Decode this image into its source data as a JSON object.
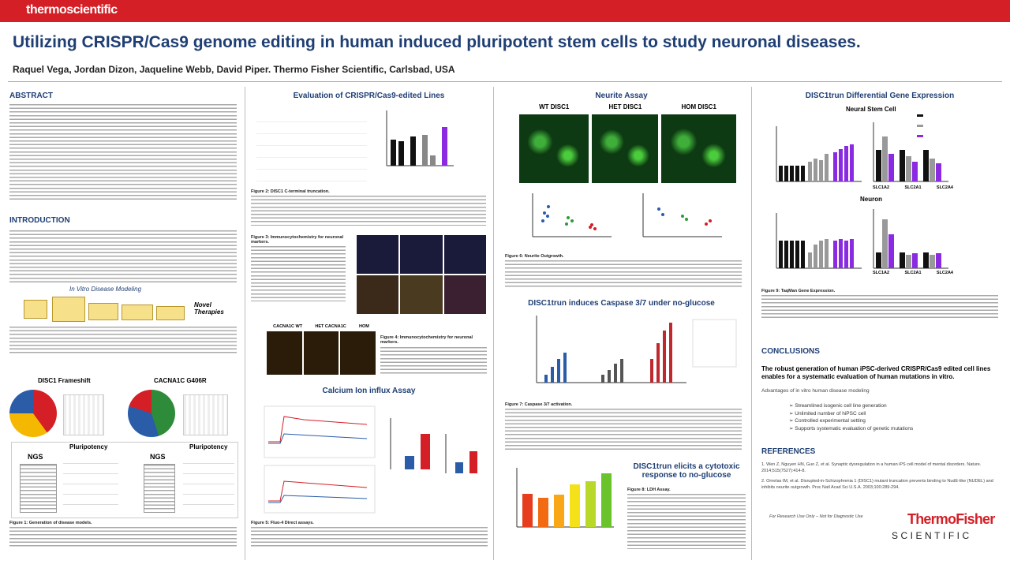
{
  "header": {
    "logo": "thermoscientific",
    "title": "Utilizing CRISPR/Cas9 genome editing in human induced pluripotent stem cells to study neuronal diseases.",
    "authors": "Raquel Vega, Jordan Dizon, Jaqueline Webb, David Piper. Thermo Fisher Scientific, Carlsbad, USA"
  },
  "column1": {
    "abstract": "ABSTRACT",
    "introduction": "INTRODUCTION",
    "modeling": "In Vitro Disease Modeling",
    "therapies": "Novel Therapies",
    "frameshift": "DISC1 Frameshift",
    "cacna": "CACNA1C G406R",
    "ngs": "NGS",
    "pluripotency": "Pluripotency",
    "caption": "Figure 1: Generation of disease models."
  },
  "column2": {
    "evaluation": "Evaluation of CRISPR/Cas9-edited Lines",
    "caption2": "Figure 2: DISC1 C-terminal truncation.",
    "caption3": "Figure 3: Immunocytochemistry for neuronal markers.",
    "caption4": "Figure 4: Immunocytochemistry for neuronal markers.",
    "labels": [
      "CACNA1C WT",
      "HET CACNA1C",
      "HOM"
    ],
    "calcium": "Calcium Ion influx Assay",
    "caption5": "Figure 5: Fluo-4 Direct assays."
  },
  "column3": {
    "neurite": "Neurite Assay",
    "labels": [
      "WT DISC1",
      "HET DISC1",
      "HOM DISC1"
    ],
    "caption6": "Figure 6: Neurite Outgrowth.",
    "caspase": "DISC1trun induces Caspase 3/7 under no-glucose",
    "caption7": "Figure 7: Caspase 3/7 activation.",
    "cytotoxic": [
      "DISC1trun elicits a cytotoxic",
      "response to no-glucose"
    ],
    "caption8": "Figure 8: LDH Assay."
  },
  "column4": {
    "expression": "DISC1trun Differential Gene Expression",
    "nsc": "Neural Stem Cell",
    "neuron": "Neuron",
    "genes": [
      "SLC1A2",
      "SLC2A1",
      "SLC2A4"
    ],
    "caption9": "Figure 9: TaqMan Gene Expression.",
    "conclusions": "CONCLUSIONS",
    "statement": "The robust generation of human iPSC-derived CRISPR/Cas9 edited cell lines enables for a systematic evaluation of human mutations in vitro.",
    "advantages": "Advantages of in vitro human disease modeling",
    "bullets": [
      "Streamlined isogenic cell line generation",
      "Unlimited number of hiPSC cell",
      "Controlled experimental setting",
      "Supports systematic evaluation of genetic mutations"
    ],
    "references": "REFERENCES",
    "refs": [
      "1. Wen Z, Nguyen HN, Guo Z, et al. Synaptic dysregulation in a human iPS cell model of mental disorders. Nature. 2014;515(7527):414-8.",
      "2. Ornelas IM, et al. Disrupted-in-Schizophrenia 1 (DISC1) mutant truncation prevents binding to NudE-like (NUDEL) and inhibits neurite outgrowth. Proc Natl Acad Sci U.S.A. 2003;100:289-294."
    ],
    "footer": "For Research Use Only – Not for Diagnostic Use",
    "brand": "ThermoFisher",
    "brand2": "SCIENTIFIC"
  }
}
